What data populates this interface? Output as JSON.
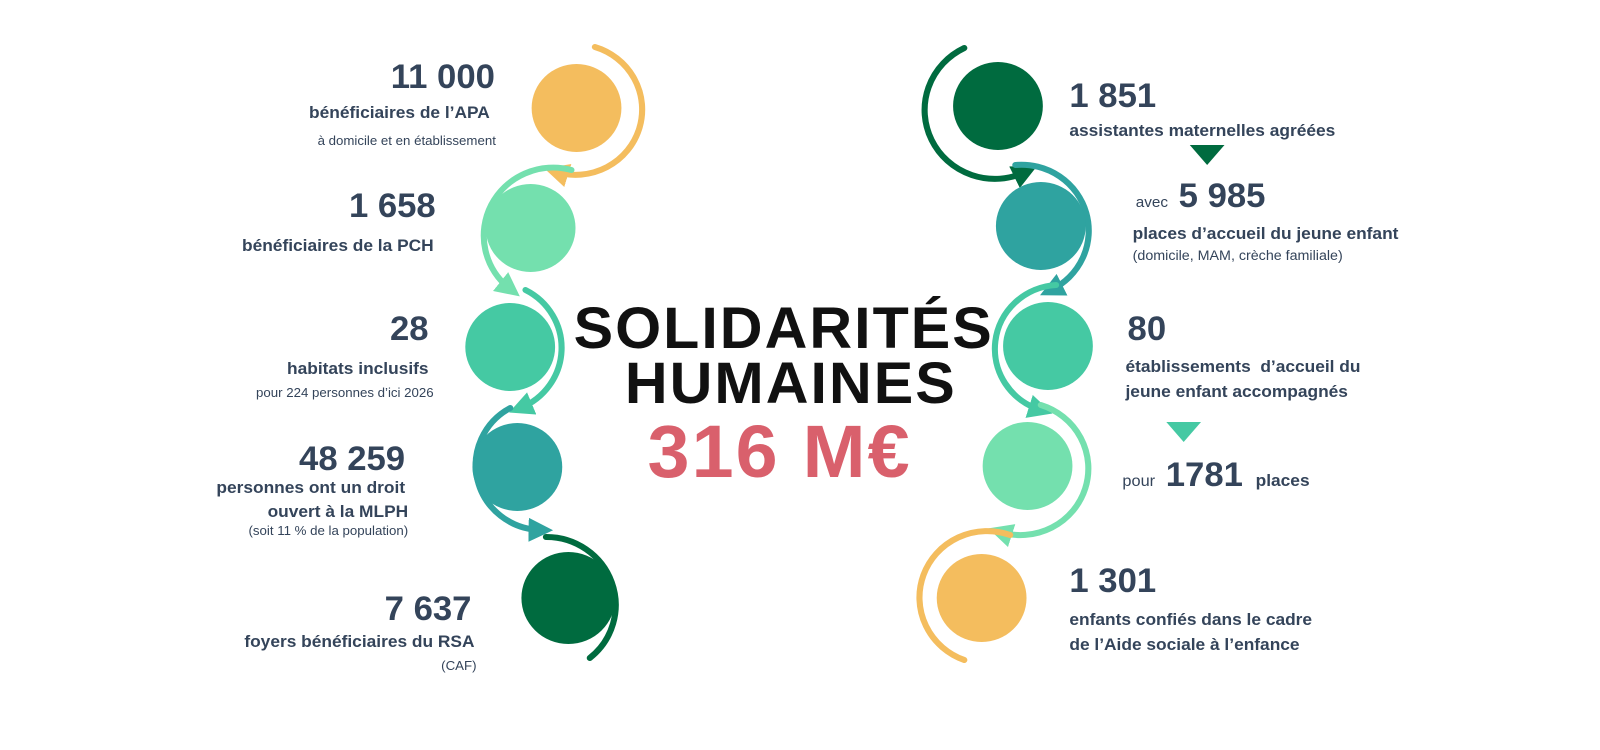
{
  "title": [
    "SOLIDARITÉS",
    "HUMAINES"
  ],
  "total": "316 M€",
  "left": [
    {
      "number": "11 000",
      "lines": [
        "bénéficiaires de l’APA"
      ],
      "note": "à domicile et en établissement"
    },
    {
      "number": "1 658",
      "lines": [
        "bénéficiaires de la PCH"
      ]
    },
    {
      "number": "28",
      "lines": [
        "habitats inclusifs"
      ],
      "note": "pour 224 personnes d’ici 2026"
    },
    {
      "number": "48 259",
      "lines": [
        "personnes ont un droit",
        "ouvert à la MLPH"
      ],
      "note": "(soit 11 % de la population)"
    },
    {
      "number": "7 637",
      "lines": [
        "foyers bénéficiaires du RSA"
      ],
      "note": "(CAF)"
    }
  ],
  "right": [
    {
      "number": "1 851",
      "lines": [
        "assistantes maternelles agréées"
      ],
      "sub": {
        "prefix": "avec",
        "number": "5 985",
        "lines": [
          "places d’accueil du jeune enfant"
        ],
        "note": "(domicile, MAM, crèche familiale)"
      }
    },
    {
      "number": "80",
      "lines": [
        "établissements  d’accueil du",
        "jeune enfant accompagnés"
      ],
      "sub": {
        "prefix": "pour",
        "number": "1781",
        "suffix": "places"
      }
    },
    {
      "number": "1 301",
      "lines": [
        "enfants confiés dans le cadre",
        "de l’Aide sociale à l’enfance"
      ]
    }
  ]
}
